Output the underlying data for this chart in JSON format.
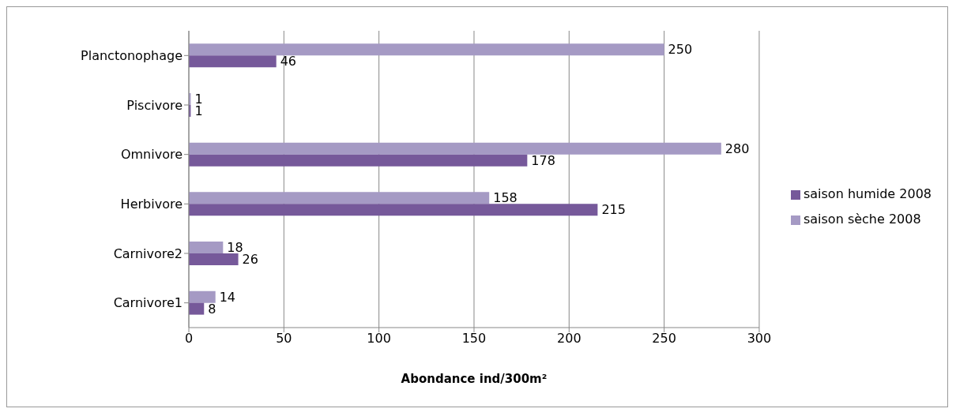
{
  "chart_data": {
    "type": "bar",
    "orientation": "horizontal",
    "categories": [
      "Planctonophage",
      "Piscivore",
      "Omnivore",
      "Herbivore",
      "Carnivore2",
      "Carnivore1"
    ],
    "series": [
      {
        "name": "saison sèche 2008",
        "color": "#a59ac4",
        "values": [
          250,
          1,
          280,
          158,
          18,
          14
        ]
      },
      {
        "name": "saison humide 2008",
        "color": "#76599a",
        "values": [
          46,
          1,
          178,
          215,
          26,
          8
        ]
      }
    ],
    "xlabel": "Abondance ind/300m²",
    "xlim": [
      0,
      300
    ],
    "xticks": [
      0,
      50,
      100,
      150,
      200,
      250,
      300
    ],
    "grid": "x",
    "legend": "right",
    "data_labels": true
  }
}
